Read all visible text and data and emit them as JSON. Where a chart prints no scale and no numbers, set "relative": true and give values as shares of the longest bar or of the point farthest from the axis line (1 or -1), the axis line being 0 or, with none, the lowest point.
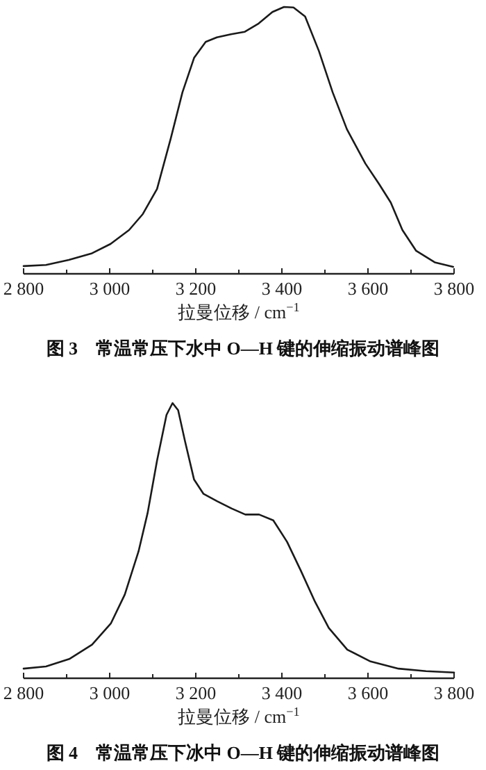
{
  "chart_data": [
    {
      "type": "line",
      "title": "图 3　常温常压下水中 O—H 键的伸缩振动谱峰图",
      "xlabel": "拉曼位移 / cm$^{−1}$",
      "relative": true,
      "tick_labels": "x",
      "xlim": [
        2800,
        3800
      ],
      "xticks": [
        {
          "value": 2800,
          "label": "2 800"
        },
        {
          "value": 2900,
          "label": null
        },
        {
          "value": 3000,
          "label": "3 000"
        },
        {
          "value": 3100,
          "label": null
        },
        {
          "value": 3200,
          "label": "3 200"
        },
        {
          "value": 3300,
          "label": null
        },
        {
          "value": 3400,
          "label": "3 400"
        },
        {
          "value": 3500,
          "label": null
        },
        {
          "value": 3600,
          "label": "3 600"
        },
        {
          "value": 3700,
          "label": null
        },
        {
          "value": 3800,
          "label": "3 800"
        }
      ],
      "x": [
        2800,
        2852,
        2905,
        2959,
        3002,
        3045,
        3077,
        3110,
        3142,
        3169,
        3196,
        3223,
        3249,
        3282,
        3314,
        3346,
        3378,
        3405,
        3427,
        3454,
        3486,
        3518,
        3551,
        3594,
        3626,
        3653,
        3680,
        3712,
        3755,
        3798
      ],
      "series": [
        {
          "color": "#1a1a1a",
          "values": [
            0.029,
            0.033,
            0.052,
            0.077,
            0.112,
            0.164,
            0.224,
            0.318,
            0.508,
            0.68,
            0.809,
            0.869,
            0.886,
            0.898,
            0.907,
            0.938,
            0.981,
            1.0,
            0.998,
            0.964,
            0.835,
            0.68,
            0.542,
            0.413,
            0.336,
            0.267,
            0.164,
            0.086,
            0.043,
            0.026
          ]
        }
      ]
    },
    {
      "type": "line",
      "title": "图 4　常温常压下冰中 O—H 键的伸缩振动谱峰图",
      "xlabel": "拉曼位移 / cm$^{−1}$",
      "relative": true,
      "tick_labels": "x",
      "xlim": [
        2800,
        3800
      ],
      "xticks": [
        {
          "value": 2800,
          "label": "2 800"
        },
        {
          "value": 2900,
          "label": null
        },
        {
          "value": 3000,
          "label": "3 000"
        },
        {
          "value": 3100,
          "label": null
        },
        {
          "value": 3200,
          "label": "3 200"
        },
        {
          "value": 3300,
          "label": null
        },
        {
          "value": 3400,
          "label": "3 400"
        },
        {
          "value": 3500,
          "label": null
        },
        {
          "value": 3600,
          "label": "3 600"
        },
        {
          "value": 3700,
          "label": null
        },
        {
          "value": 3800,
          "label": "3 800"
        }
      ],
      "x": [
        2800,
        2852,
        2906,
        2959,
        3003,
        3035,
        3067,
        3088,
        3110,
        3132,
        3146,
        3159,
        3175,
        3196,
        3218,
        3250,
        3283,
        3315,
        3347,
        3380,
        3412,
        3444,
        3477,
        3509,
        3552,
        3606,
        3671,
        3735,
        3800
      ],
      "series": [
        {
          "color": "#1a1a1a",
          "values": [
            0.035,
            0.043,
            0.07,
            0.122,
            0.2,
            0.304,
            0.461,
            0.6,
            0.791,
            0.957,
            1.0,
            0.974,
            0.861,
            0.722,
            0.67,
            0.643,
            0.617,
            0.595,
            0.595,
            0.574,
            0.496,
            0.391,
            0.278,
            0.183,
            0.104,
            0.061,
            0.035,
            0.026,
            0.021
          ]
        }
      ]
    }
  ]
}
